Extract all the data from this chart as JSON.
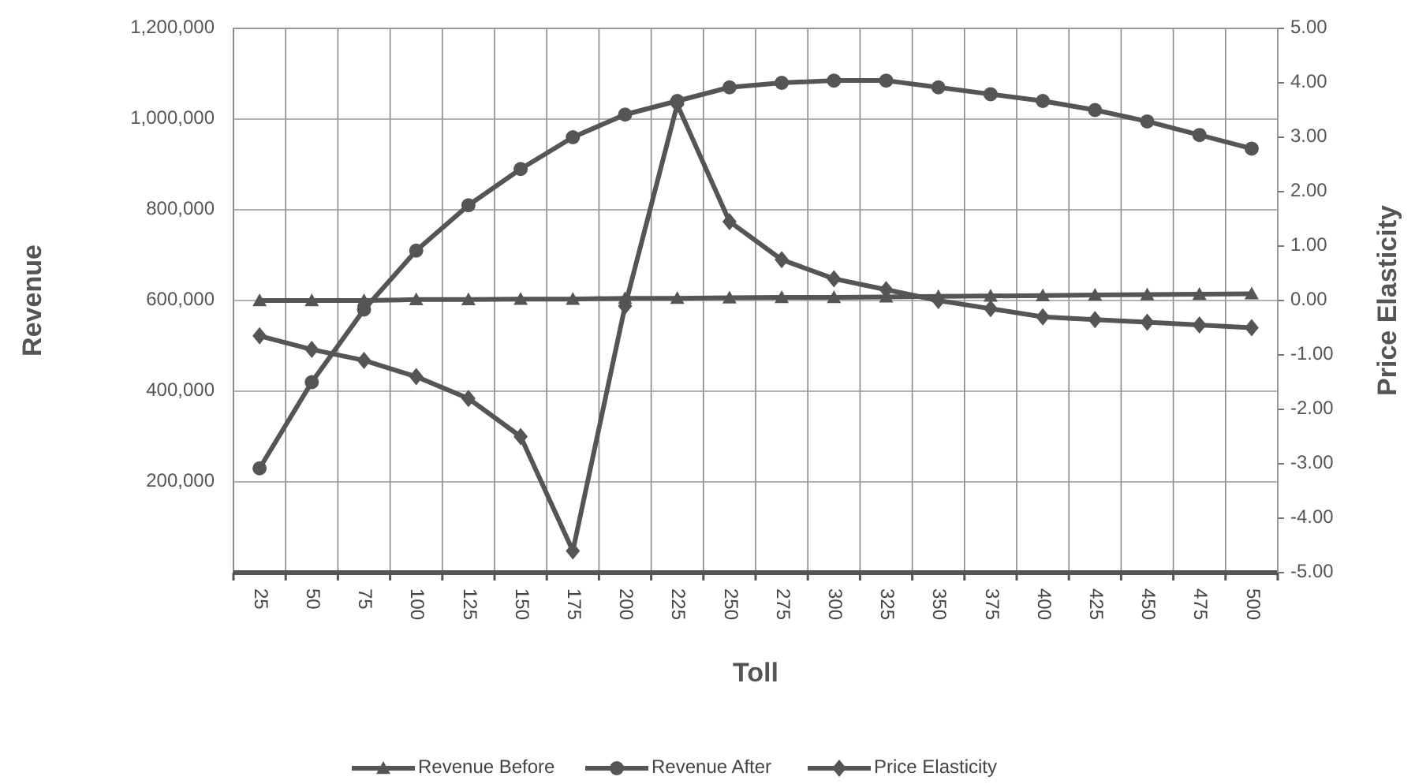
{
  "chart_data": {
    "type": "line",
    "xlabel": "Toll",
    "ylabel": "Revenue",
    "y2label": "Price Elasticity",
    "categories": [
      "25",
      "50",
      "75",
      "100",
      "125",
      "150",
      "175",
      "200",
      "225",
      "250",
      "275",
      "300",
      "325",
      "350",
      "375",
      "400",
      "425",
      "450",
      "475",
      "500"
    ],
    "series": [
      {
        "name": "Revenue Before",
        "color": "#555555",
        "marker": "triangle",
        "values": [
          600000,
          600000,
          600000,
          602000,
          602000,
          603000,
          603000,
          605000,
          605000,
          606000,
          607000,
          607000,
          608000,
          609000,
          610000,
          611000,
          612000,
          613000,
          614000,
          615000
        ]
      },
      {
        "name": "Revenue After",
        "color": "#555555",
        "marker": "circle",
        "values": [
          230000,
          420000,
          580000,
          710000,
          810000,
          890000,
          960000,
          1010000,
          1040000,
          1070000,
          1080000,
          1085000,
          1085000,
          1070000,
          1055000,
          1040000,
          1020000,
          995000,
          965000,
          935000
        ]
      },
      {
        "name": "Price Elasticity",
        "color": "#555555",
        "marker": "diamond",
        "axis": "y2",
        "values": [
          -0.65,
          -0.9,
          -1.1,
          -1.4,
          -1.8,
          -2.5,
          -4.6,
          -0.1,
          3.6,
          1.45,
          0.75,
          0.4,
          0.2,
          0.0,
          -0.15,
          -0.3,
          -0.35,
          -0.4,
          -0.45,
          -0.5
        ]
      }
    ],
    "ylim": [
      0,
      1200000
    ],
    "yticks": [
      {
        "value": 200000,
        "label": "200,000"
      },
      {
        "value": 400000,
        "label": "400,000"
      },
      {
        "value": 600000,
        "label": "600,000"
      },
      {
        "value": 800000,
        "label": "800,000"
      },
      {
        "value": 1000000,
        "label": "1,000,000"
      },
      {
        "value": 1200000,
        "label": "1,200,000"
      }
    ],
    "y2lim": [
      -5,
      5
    ],
    "y2ticks": [
      {
        "value": 5,
        "label": "5.00"
      },
      {
        "value": 4,
        "label": "4.00"
      },
      {
        "value": 3,
        "label": "3.00"
      },
      {
        "value": 2,
        "label": "2.00"
      },
      {
        "value": 1,
        "label": "1.00"
      },
      {
        "value": 0,
        "label": "0.00"
      },
      {
        "value": -1,
        "label": "-1.00"
      },
      {
        "value": -2,
        "label": "-2.00"
      },
      {
        "value": -3,
        "label": "-3.00"
      },
      {
        "value": -4,
        "label": "-4.00"
      },
      {
        "value": -5,
        "label": "-5.00"
      }
    ],
    "grid": true,
    "legend": "bottom",
    "line_style": "solid"
  }
}
